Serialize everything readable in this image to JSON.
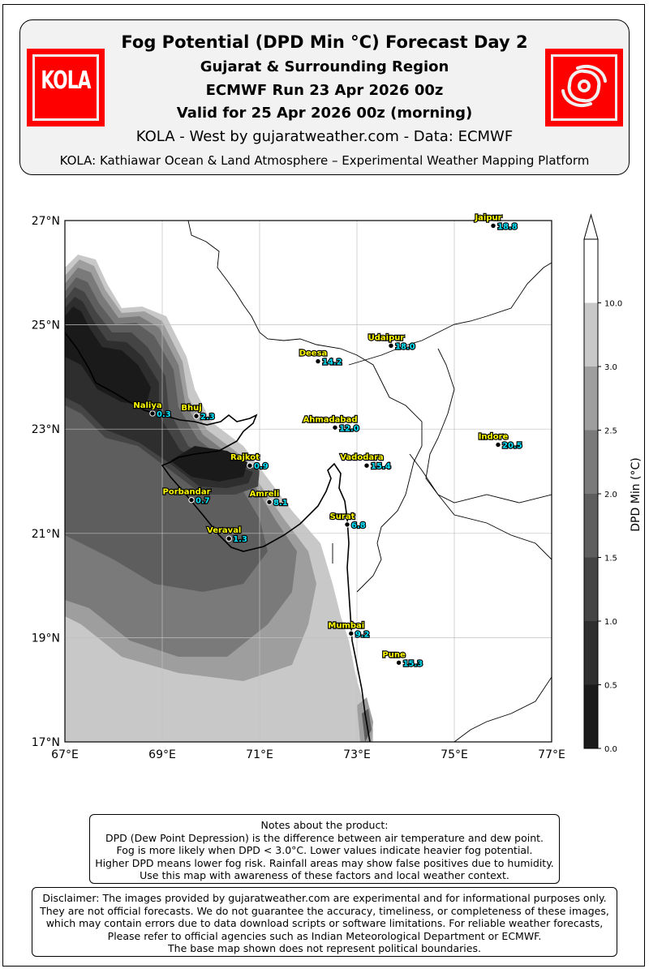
{
  "header": {
    "title": "Fog Potential (DPD Min °C) Forecast Day 2",
    "region": "Gujarat & Surrounding Region",
    "run": "ECMWF Run 23 Apr 2026 00z",
    "valid": "Valid for 25 Apr 2026 00z (morning)",
    "brand": "KOLA - West by gujaratweather.com  -  Data: ECMWF",
    "platform": "KOLA: Kathiawar Ocean & Land Atmosphere – Experimental Weather Mapping Platform",
    "logo_left_text": "KOLA",
    "logo_right_icon": "cyclone-icon",
    "logo_color": "#ff0000"
  },
  "map": {
    "lon_range": [
      67,
      77
    ],
    "lat_range": [
      17,
      27
    ],
    "lon_ticks": [
      "67°E",
      "69°E",
      "71°E",
      "73°E",
      "75°E",
      "77°E"
    ],
    "lat_ticks": [
      "27°N",
      "25°N",
      "23°N",
      "21°N",
      "19°N",
      "17°N"
    ],
    "grid": true,
    "cities": [
      {
        "name": "Jaipur",
        "value": "18.8",
        "lon": 75.8,
        "lat": 26.9
      },
      {
        "name": "Udaipur",
        "value": "18.0",
        "lon": 73.7,
        "lat": 24.6
      },
      {
        "name": "Deesa",
        "value": "14.2",
        "lon": 72.2,
        "lat": 24.3
      },
      {
        "name": "Naliya",
        "value": "0.3",
        "lon": 68.8,
        "lat": 23.3
      },
      {
        "name": "Bhuj",
        "value": "2.3",
        "lon": 69.7,
        "lat": 23.25
      },
      {
        "name": "Ahmadabad",
        "value": "12.0",
        "lon": 72.55,
        "lat": 23.03
      },
      {
        "name": "Indore",
        "value": "20.5",
        "lon": 75.9,
        "lat": 22.7
      },
      {
        "name": "Rajkot",
        "value": "0.9",
        "lon": 70.8,
        "lat": 22.3
      },
      {
        "name": "Vadodara",
        "value": "15.4",
        "lon": 73.2,
        "lat": 22.3
      },
      {
        "name": "Porbandar",
        "value": "0.7",
        "lon": 69.6,
        "lat": 21.64
      },
      {
        "name": "Amreli",
        "value": "8.1",
        "lon": 71.2,
        "lat": 21.6
      },
      {
        "name": "Surat",
        "value": "6.8",
        "lon": 72.8,
        "lat": 21.17
      },
      {
        "name": "Veraval",
        "value": "1.3",
        "lon": 70.37,
        "lat": 20.9
      },
      {
        "name": "Mumbai",
        "value": "9.2",
        "lon": 72.88,
        "lat": 19.08
      },
      {
        "name": "Pune",
        "value": "15.3",
        "lon": 73.86,
        "lat": 18.52
      }
    ]
  },
  "colorbar": {
    "label": "DPD Min (°C)",
    "ticks": [
      "0.0",
      "0.5",
      "1.0",
      "1.5",
      "2.0",
      "2.5",
      "3.0",
      "10.0"
    ],
    "colors": [
      "#1a1a1a",
      "#2e2e2e",
      "#444444",
      "#5e5e5e",
      "#7a7a7a",
      "#9e9e9e",
      "#c8c8c8",
      "#ffffff"
    ]
  },
  "notes": {
    "lines": [
      "Notes about the product:",
      "DPD (Dew Point Depression) is the difference between air temperature and dew point.",
      "Fog is more likely when DPD < 3.0°C. Lower values indicate heavier fog potential.",
      "Higher DPD means lower fog risk. Rainfall areas may show false positives due to humidity.",
      "Use this map with awareness of these factors and local weather context."
    ]
  },
  "disclaimer": {
    "lines": [
      "Disclaimer: The images provided by gujaratweather.com are experimental and for informational purposes only.",
      "They are not official forecasts. We do not guarantee the accuracy, timeliness, or completeness of these images,",
      "which may contain errors due to data download scripts or software limitations. For reliable weather forecasts,",
      "Please refer to official agencies such as Indian Meteorological Department or ECMWF.",
      "The base map shown does not represent political boundaries."
    ]
  }
}
